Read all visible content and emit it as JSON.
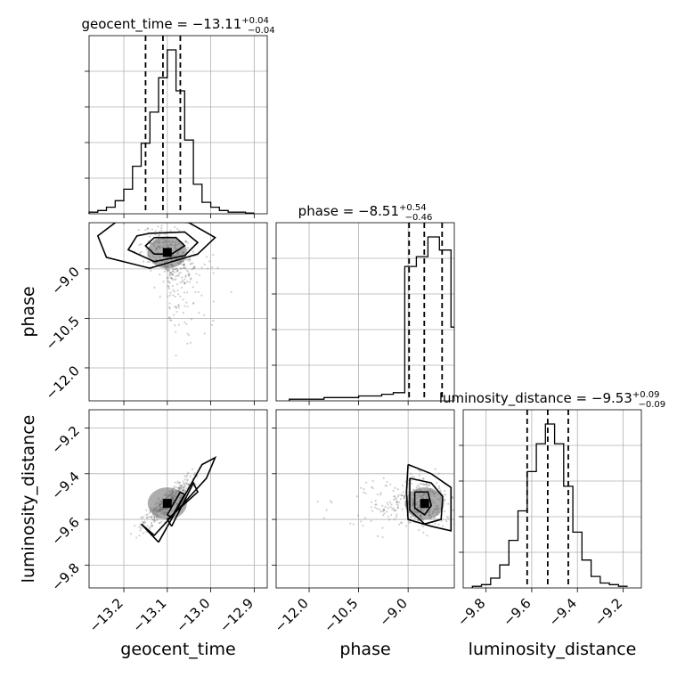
{
  "chart_data": {
    "type": "corner",
    "parameters": [
      {
        "key": "geocent_time",
        "label": "geocent_time",
        "title": {
          "prefix": "geocent_time = ",
          "value": "−13.11",
          "plus": "+0.04",
          "minus": "−0.04"
        },
        "median": -13.11,
        "q_low": -13.15,
        "q_high": -13.07,
        "range": [
          -13.28,
          -12.87
        ],
        "ticks": [
          -13.2,
          -13.1,
          -13.0,
          -12.9
        ],
        "tick_labels": [
          "−13.2",
          "−13.1",
          "−13.0",
          "−12.9"
        ],
        "hist": {
          "edges": [
            -13.28,
            -13.26,
            -13.24,
            -13.22,
            -13.2,
            -13.18,
            -13.16,
            -13.14,
            -13.12,
            -13.1,
            -13.08,
            -13.06,
            -13.04,
            -13.02,
            -13.0,
            -12.98,
            -12.96,
            -12.94,
            -12.92,
            -12.9
          ],
          "density": [
            0.01,
            0.02,
            0.04,
            0.08,
            0.15,
            0.29,
            0.43,
            0.62,
            0.83,
            1.0,
            0.75,
            0.45,
            0.18,
            0.07,
            0.04,
            0.02,
            0.01,
            0.01,
            0.005
          ]
        }
      },
      {
        "key": "phase",
        "label": "phase",
        "title": {
          "prefix": "phase = ",
          "value": "−8.51",
          "plus": "+0.54",
          "minus": "−0.46"
        },
        "median": -8.51,
        "q_low": -8.97,
        "q_high": -7.97,
        "range": [
          -13.0,
          -7.6
        ],
        "ticks": [
          -12.0,
          -10.5,
          -9.0
        ],
        "tick_labels": [
          "−12.0",
          "−10.5",
          "−9.0"
        ],
        "hist": {
          "edges": [
            -12.6,
            -12.25,
            -11.9,
            -11.55,
            -11.2,
            -10.85,
            -10.5,
            -10.15,
            -9.8,
            -9.45,
            -9.1,
            -8.75,
            -8.4,
            -8.05,
            -7.7,
            -7.6
          ],
          "density": [
            0.01,
            0.01,
            0.01,
            0.02,
            0.02,
            0.02,
            0.03,
            0.03,
            0.04,
            0.05,
            0.82,
            0.88,
            1.0,
            0.92,
            0.45
          ]
        }
      },
      {
        "key": "luminosity_distance",
        "label": "luminosity_distance",
        "title": {
          "prefix": "luminosity_distance = ",
          "value": "−9.53",
          "plus": "+0.09",
          "minus": "−0.09"
        },
        "median": -9.53,
        "q_low": -9.62,
        "q_high": -9.44,
        "range": [
          -9.9,
          -9.12
        ],
        "ticks": [
          -9.8,
          -9.6,
          -9.4,
          -9.2
        ],
        "tick_labels": [
          "−9.8",
          "−9.6",
          "−9.4",
          "−9.2"
        ],
        "hist": {
          "edges": [
            -9.86,
            -9.82,
            -9.78,
            -9.74,
            -9.7,
            -9.66,
            -9.62,
            -9.58,
            -9.54,
            -9.5,
            -9.46,
            -9.42,
            -9.38,
            -9.34,
            -9.3,
            -9.26,
            -9.22,
            -9.18
          ],
          "density": [
            0.01,
            0.02,
            0.06,
            0.14,
            0.29,
            0.47,
            0.71,
            0.88,
            1.0,
            0.88,
            0.62,
            0.34,
            0.17,
            0.07,
            0.03,
            0.02,
            0.01
          ]
        }
      }
    ],
    "pairs": [
      {
        "x": "geocent_time",
        "y": "phase",
        "center": [
          -13.1,
          -8.5
        ],
        "contours": [
          [
            [
              -13.2,
              -7.4
            ],
            [
              -13.05,
              -7.6
            ],
            [
              -12.99,
              -8.05
            ],
            [
              -13.03,
              -8.55
            ],
            [
              -13.14,
              -8.98
            ],
            [
              -13.24,
              -8.65
            ],
            [
              -13.26,
              -8.0
            ],
            [
              -13.2,
              -7.4
            ]
          ],
          [
            [
              -13.14,
              -7.92
            ],
            [
              -13.06,
              -7.88
            ],
            [
              -13.03,
              -8.2
            ],
            [
              -13.06,
              -8.6
            ],
            [
              -13.13,
              -8.78
            ],
            [
              -13.19,
              -8.42
            ],
            [
              -13.17,
              -8.0
            ],
            [
              -13.14,
              -7.92
            ]
          ],
          [
            [
              -13.13,
              -8.05
            ],
            [
              -13.08,
              -8.05
            ],
            [
              -13.06,
              -8.3
            ],
            [
              -13.09,
              -8.55
            ],
            [
              -13.13,
              -8.55
            ],
            [
              -13.15,
              -8.3
            ],
            [
              -13.13,
              -8.05
            ]
          ]
        ]
      },
      {
        "x": "geocent_time",
        "y": "luminosity_distance",
        "center": [
          -13.1,
          -9.53
        ],
        "contours": [
          [
            [
              -13.12,
              -9.7
            ],
            [
              -13.02,
              -9.36
            ],
            [
              -12.99,
              -9.33
            ],
            [
              -13.01,
              -9.42
            ],
            [
              -13.13,
              -9.67
            ],
            [
              -13.16,
              -9.62
            ],
            [
              -13.12,
              -9.7
            ]
          ],
          [
            [
              -13.09,
              -9.63
            ],
            [
              -13.04,
              -9.44
            ],
            [
              -13.03,
              -9.48
            ],
            [
              -13.1,
              -9.6
            ],
            [
              -13.09,
              -9.63
            ]
          ],
          [
            [
              -13.09,
              -9.59
            ],
            [
              -13.06,
              -9.49
            ],
            [
              -13.07,
              -9.48
            ],
            [
              -13.1,
              -9.58
            ],
            [
              -13.09,
              -9.59
            ]
          ]
        ]
      },
      {
        "x": "phase",
        "y": "luminosity_distance",
        "center": [
          -8.5,
          -9.53
        ],
        "contours": [
          [
            [
              -9.0,
              -9.36
            ],
            [
              -8.3,
              -9.4
            ],
            [
              -7.7,
              -9.46
            ],
            [
              -7.7,
              -9.65
            ],
            [
              -8.3,
              -9.63
            ],
            [
              -9.0,
              -9.6
            ],
            [
              -9.05,
              -9.48
            ],
            [
              -9.0,
              -9.36
            ]
          ],
          [
            [
              -8.95,
              -9.42
            ],
            [
              -8.3,
              -9.44
            ],
            [
              -7.95,
              -9.5
            ],
            [
              -8.0,
              -9.6
            ],
            [
              -8.5,
              -9.62
            ],
            [
              -8.95,
              -9.56
            ],
            [
              -8.95,
              -9.42
            ]
          ],
          [
            [
              -8.8,
              -9.48
            ],
            [
              -8.4,
              -9.48
            ],
            [
              -8.3,
              -9.54
            ],
            [
              -8.5,
              -9.58
            ],
            [
              -8.8,
              -9.55
            ],
            [
              -8.8,
              -9.48
            ]
          ]
        ]
      }
    ],
    "grid": true,
    "quantiles": [
      0.16,
      0.5,
      0.84
    ]
  }
}
